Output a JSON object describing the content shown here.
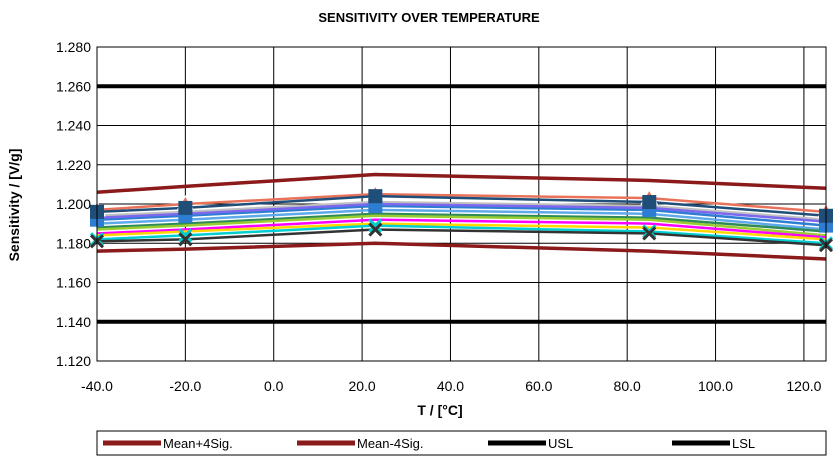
{
  "chart_data": {
    "type": "line",
    "title": "SENSITIVITY OVER TEMPERATURE",
    "xlabel": "T / [°C]",
    "ylabel": "Sensitivity / [V/g]",
    "xlim": [
      -40,
      125
    ],
    "ylim": [
      1.12,
      1.28
    ],
    "xticks": [
      "-40.0",
      "-20.0",
      "0.0",
      "20.0",
      "40.0",
      "60.0",
      "80.0",
      "100.0",
      "120.0"
    ],
    "xtick_values": [
      -40,
      -20,
      0,
      20,
      40,
      60,
      80,
      100,
      120
    ],
    "yticks": [
      "1.120",
      "1.140",
      "1.160",
      "1.180",
      "1.200",
      "1.220",
      "1.240",
      "1.260",
      "1.280"
    ],
    "ytick_values": [
      1.12,
      1.14,
      1.16,
      1.18,
      1.2,
      1.22,
      1.24,
      1.26,
      1.28
    ],
    "x": [
      -40,
      -20,
      23,
      85,
      125
    ],
    "grid": true,
    "legend_position": "bottom",
    "named_series": [
      {
        "name": "Mean+4Sig.",
        "color": "#8B1A1A",
        "values": [
          1.206,
          1.209,
          1.215,
          1.212,
          1.208
        ]
      },
      {
        "name": "Mean-4Sig.",
        "color": "#8B1A1A",
        "values": [
          1.176,
          1.177,
          1.18,
          1.176,
          1.172
        ]
      },
      {
        "name": "USL",
        "color": "#000000",
        "values": [
          1.26,
          1.26,
          1.26,
          1.26,
          1.26
        ]
      },
      {
        "name": "LSL",
        "color": "#000000",
        "values": [
          1.14,
          1.14,
          1.14,
          1.14,
          1.14
        ]
      }
    ],
    "device_series": [
      {
        "color": "#E8735A",
        "marker": "triangle",
        "values": [
          1.197,
          1.2,
          1.205,
          1.203,
          1.196
        ]
      },
      {
        "color": "#2D7DD2",
        "marker": "square",
        "values": [
          1.192,
          1.194,
          1.199,
          1.197,
          1.189
        ]
      },
      {
        "color": "#1F4E79",
        "marker": "square",
        "values": [
          1.196,
          1.198,
          1.204,
          1.201,
          1.194
        ]
      },
      {
        "color": "#5DA9E9",
        "marker": "none",
        "values": [
          1.19,
          1.192,
          1.197,
          1.195,
          1.187
        ]
      },
      {
        "color": "#2E8B57",
        "marker": "none",
        "values": [
          1.188,
          1.19,
          1.195,
          1.193,
          1.186
        ]
      },
      {
        "color": "#9ACD32",
        "marker": "none",
        "values": [
          1.187,
          1.189,
          1.194,
          1.192,
          1.184
        ]
      },
      {
        "color": "#FF00FF",
        "marker": "none",
        "values": [
          1.185,
          1.187,
          1.192,
          1.19,
          1.183
        ]
      },
      {
        "color": "#FFD700",
        "marker": "none",
        "values": [
          1.184,
          1.186,
          1.19,
          1.188,
          1.182
        ]
      },
      {
        "color": "#00CED1",
        "marker": "x",
        "values": [
          1.182,
          1.184,
          1.189,
          1.186,
          1.18
        ]
      },
      {
        "color": "#333333",
        "marker": "x",
        "values": [
          1.181,
          1.182,
          1.187,
          1.185,
          1.179
        ]
      },
      {
        "color": "#C0C0C0",
        "marker": "none",
        "values": [
          1.194,
          1.196,
          1.201,
          1.199,
          1.192
        ]
      },
      {
        "color": "#7B68EE",
        "marker": "none",
        "values": [
          1.193,
          1.195,
          1.2,
          1.198,
          1.191
        ]
      }
    ]
  }
}
